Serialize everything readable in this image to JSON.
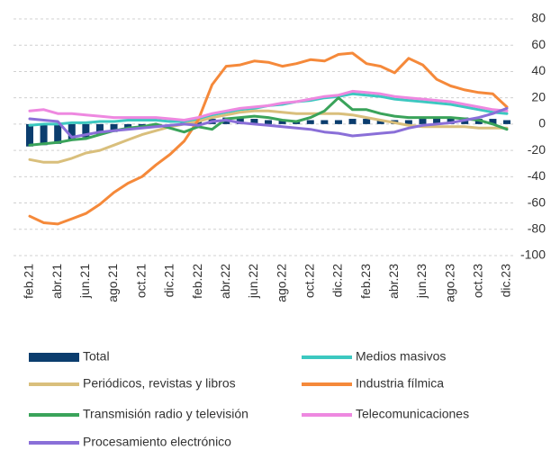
{
  "chart_data": {
    "type": "line",
    "categories": [
      "feb.21",
      null,
      "abr.21",
      null,
      "jun.21",
      null,
      "ago.21",
      null,
      "oct.21",
      null,
      "dic.21",
      null,
      "feb.22",
      null,
      "abr.22",
      null,
      "jun.22",
      null,
      "ago.22",
      null,
      "oct.22",
      null,
      "dic.22",
      null,
      "feb.23",
      null,
      "abr.23",
      null,
      "jun.23",
      null,
      "ago.23",
      null,
      "oct.23",
      null,
      "dic.23"
    ],
    "series": [
      {
        "name": "Total",
        "kind": "bar",
        "color": "#0b3d6e",
        "values": [
          -17,
          -16,
          -15,
          -12,
          -10,
          -8,
          -6,
          -4,
          -3,
          -1,
          0,
          1,
          3,
          4,
          5,
          5,
          4,
          3,
          3,
          2,
          3,
          3,
          3,
          4,
          4,
          3,
          3,
          3,
          4,
          5,
          5,
          5,
          4,
          4,
          3
        ]
      },
      {
        "name": "Medios masivos",
        "color": "#3cc8c0",
        "values": [
          -1,
          0,
          0,
          1,
          1,
          2,
          2,
          3,
          3,
          3,
          2,
          2,
          4,
          7,
          9,
          11,
          12,
          14,
          15,
          17,
          18,
          20,
          21,
          23,
          22,
          21,
          19,
          18,
          17,
          16,
          15,
          13,
          11,
          9,
          8
        ]
      },
      {
        "name": "Periódicos, revistas y libros",
        "color": "#d9bf7c",
        "values": [
          -27,
          -29,
          -29,
          -26,
          -22,
          -20,
          -16,
          -12,
          -8,
          -5,
          -2,
          0,
          2,
          5,
          7,
          9,
          10,
          10,
          9,
          8,
          8,
          8,
          8,
          7,
          5,
          3,
          1,
          -1,
          -2,
          -2,
          -2,
          -2,
          -3,
          -3,
          -3
        ]
      },
      {
        "name": "Industria fílmica",
        "color": "#f5893a",
        "values": [
          -70,
          -75,
          -76,
          -72,
          -68,
          -61,
          -52,
          -45,
          -40,
          -31,
          -23,
          -13,
          3,
          30,
          44,
          45,
          48,
          47,
          44,
          46,
          49,
          48,
          53,
          54,
          46,
          44,
          39,
          50,
          45,
          34,
          29,
          26,
          24,
          23,
          13
        ]
      },
      {
        "name": "Transmisión radio y televisión",
        "color": "#3aa35a",
        "values": [
          -16,
          -15,
          -14,
          -12,
          -11,
          -8,
          -5,
          -3,
          -2,
          0,
          -3,
          -6,
          -2,
          -4,
          4,
          5,
          6,
          5,
          3,
          2,
          5,
          10,
          20,
          11,
          11,
          8,
          6,
          5,
          5,
          5,
          5,
          4,
          3,
          0,
          -4
        ]
      },
      {
        "name": "Telecomunicaciones",
        "color": "#ee88e0",
        "values": [
          10,
          11,
          8,
          8,
          7,
          6,
          5,
          5,
          5,
          5,
          4,
          3,
          5,
          8,
          10,
          12,
          13,
          14,
          16,
          17,
          19,
          21,
          22,
          25,
          24,
          23,
          21,
          20,
          19,
          18,
          17,
          15,
          13,
          11,
          10
        ]
      },
      {
        "name": "Procesamiento electrónico",
        "color": "#8a6fd8",
        "values": [
          4,
          3,
          2,
          -10,
          -8,
          -6,
          -5,
          -4,
          -3,
          -2,
          -1,
          0,
          -1,
          2,
          3,
          1,
          0,
          -1,
          -2,
          -3,
          -4,
          -6,
          -7,
          -9,
          -8,
          -7,
          -6,
          -3,
          -1,
          0,
          1,
          3,
          5,
          8,
          12
        ]
      }
    ],
    "ylim": [
      -100,
      80
    ],
    "yticks": [
      -100,
      -80,
      -60,
      -40,
      -20,
      0,
      20,
      40,
      60,
      80
    ],
    "grid": true
  }
}
